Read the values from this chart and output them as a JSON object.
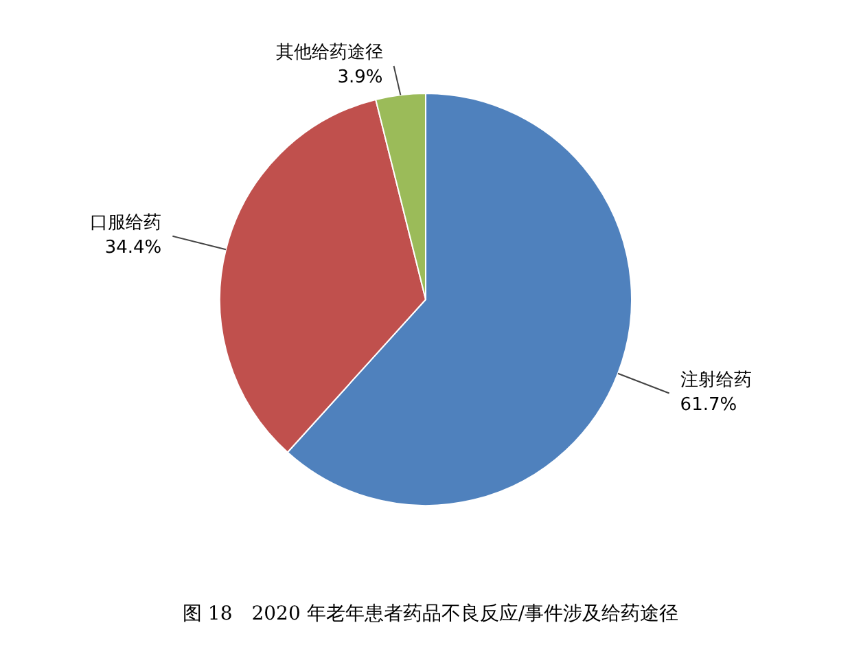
{
  "chart_data": {
    "type": "pie",
    "title": "图 18　2020 年老年患者药品不良反应/事件涉及给药途径",
    "categories": [
      "注射给药",
      "口服给药",
      "其他给药途径"
    ],
    "values": [
      61.7,
      34.4,
      3.9
    ],
    "colors": [
      "#4f81bd",
      "#c0504d",
      "#9bbb59"
    ],
    "value_labels": [
      "61.7%",
      "34.4%",
      "3.9%"
    ]
  }
}
